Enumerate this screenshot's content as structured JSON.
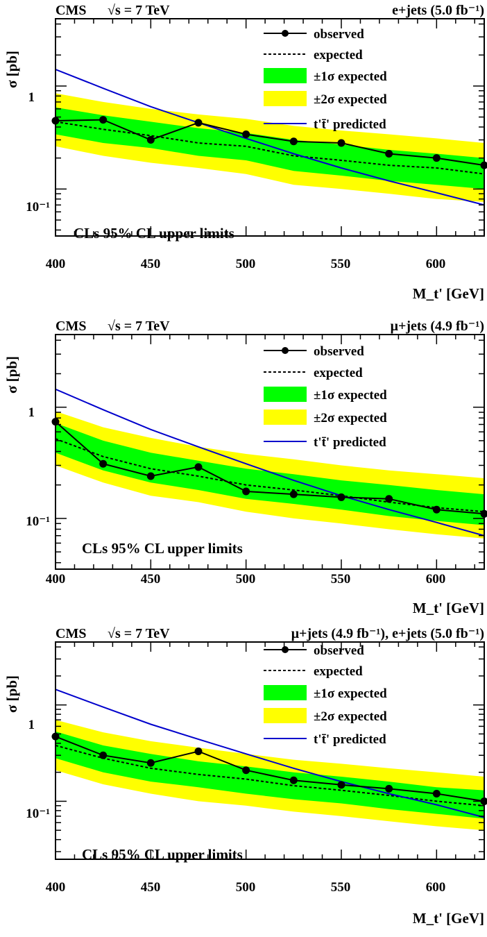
{
  "chart_data": [
    {
      "type": "line",
      "header_left": "CMS",
      "header_energy": "√s = 7 TeV",
      "header_right": "e+jets (5.0 fb⁻¹)",
      "xlabel": "M_t' [GeV]",
      "ylabel": "σ [pb]",
      "annotation": "CLs 95% CL upper limits",
      "x_ticks": [
        "400",
        "450",
        "500",
        "550",
        "600"
      ],
      "y_ticks": [
        "1",
        "10⁻¹"
      ],
      "xlim": [
        400,
        625
      ],
      "ylim": [
        0.035,
        4.5
      ],
      "ylog": true,
      "legend_position": "top-right",
      "legend": [
        "observed",
        "expected",
        "±1σ expected",
        "±2σ expected",
        "t't̄' predicted"
      ],
      "x": [
        400,
        425,
        450,
        475,
        500,
        525,
        550,
        575,
        600,
        625
      ],
      "series": [
        {
          "name": "observed",
          "values": [
            0.46,
            0.47,
            0.3,
            0.44,
            0.34,
            0.29,
            0.28,
            0.22,
            0.2,
            0.17
          ]
        },
        {
          "name": "expected",
          "values": [
            0.45,
            0.38,
            0.33,
            0.28,
            0.26,
            0.21,
            0.19,
            0.17,
            0.16,
            0.14
          ]
        },
        {
          "name": "t't̄' predicted",
          "values": [
            1.45,
            0.95,
            0.63,
            0.44,
            0.31,
            0.22,
            0.16,
            0.12,
            0.092,
            0.07
          ]
        }
      ],
      "band_1sigma": {
        "low": [
          0.34,
          0.28,
          0.25,
          0.21,
          0.19,
          0.15,
          0.135,
          0.12,
          0.11,
          0.1
        ],
        "high": [
          0.62,
          0.52,
          0.45,
          0.39,
          0.35,
          0.3,
          0.27,
          0.24,
          0.22,
          0.2
        ]
      },
      "band_2sigma": {
        "low": [
          0.26,
          0.21,
          0.18,
          0.16,
          0.14,
          0.11,
          0.1,
          0.09,
          0.08,
          0.075
        ],
        "high": [
          0.85,
          0.7,
          0.6,
          0.53,
          0.48,
          0.41,
          0.37,
          0.34,
          0.31,
          0.28
        ]
      }
    },
    {
      "type": "line",
      "header_left": "CMS",
      "header_energy": "√s = 7 TeV",
      "header_right": "μ+jets (4.9 fb⁻¹)",
      "xlabel": "M_t' [GeV]",
      "ylabel": "σ [pb]",
      "annotation": "CLs 95% CL upper limits",
      "x_ticks": [
        "400",
        "450",
        "500",
        "550",
        "600"
      ],
      "y_ticks": [
        "1",
        "10⁻¹"
      ],
      "xlim": [
        400,
        625
      ],
      "ylim": [
        0.035,
        4.5
      ],
      "ylog": true,
      "legend_position": "top-right",
      "legend": [
        "observed",
        "expected",
        "±1σ expected",
        "±2σ expected",
        "t't̄' predicted"
      ],
      "x": [
        400,
        425,
        450,
        475,
        500,
        525,
        550,
        575,
        600,
        625
      ],
      "series": [
        {
          "name": "observed",
          "values": [
            0.74,
            0.31,
            0.24,
            0.29,
            0.175,
            0.165,
            0.155,
            0.15,
            0.12,
            0.11
          ]
        },
        {
          "name": "expected",
          "values": [
            0.52,
            0.36,
            0.28,
            0.24,
            0.2,
            0.18,
            0.16,
            0.14,
            0.125,
            0.115
          ]
        },
        {
          "name": "t't̄' predicted",
          "values": [
            1.45,
            0.95,
            0.63,
            0.44,
            0.31,
            0.22,
            0.16,
            0.12,
            0.092,
            0.07
          ]
        }
      ],
      "band_1sigma": {
        "low": [
          0.39,
          0.27,
          0.21,
          0.18,
          0.15,
          0.135,
          0.12,
          0.105,
          0.095,
          0.087
        ],
        "high": [
          0.72,
          0.5,
          0.39,
          0.33,
          0.28,
          0.25,
          0.22,
          0.2,
          0.18,
          0.165
        ]
      },
      "band_2sigma": {
        "low": [
          0.3,
          0.21,
          0.16,
          0.14,
          0.115,
          0.1,
          0.09,
          0.08,
          0.072,
          0.066
        ],
        "high": [
          0.92,
          0.66,
          0.53,
          0.44,
          0.38,
          0.34,
          0.3,
          0.27,
          0.25,
          0.23
        ]
      }
    },
    {
      "type": "line",
      "header_left": "CMS",
      "header_energy": "√s = 7 TeV",
      "header_right": "μ+jets (4.9 fb⁻¹), e+jets (5.0 fb⁻¹)",
      "xlabel": "M_t' [GeV]",
      "ylabel": "σ [pb]",
      "annotation": "CLs 95% CL upper limits",
      "x_ticks": [
        "400",
        "450",
        "500",
        "550",
        "600"
      ],
      "y_ticks": [
        "1",
        "10⁻¹"
      ],
      "xlim": [
        400,
        625
      ],
      "ylim": [
        0.025,
        4.5
      ],
      "ylog": true,
      "legend_position": "top-right",
      "legend": [
        "observed",
        "expected",
        "±1σ expected",
        "±2σ expected",
        "t't̄' predicted"
      ],
      "x": [
        400,
        425,
        450,
        475,
        500,
        525,
        550,
        575,
        600,
        625
      ],
      "series": [
        {
          "name": "observed",
          "values": [
            0.47,
            0.3,
            0.25,
            0.33,
            0.21,
            0.165,
            0.148,
            0.135,
            0.12,
            0.1
          ]
        },
        {
          "name": "expected",
          "values": [
            0.38,
            0.28,
            0.22,
            0.19,
            0.17,
            0.145,
            0.13,
            0.115,
            0.1,
            0.09
          ]
        },
        {
          "name": "t't̄' predicted",
          "values": [
            1.45,
            0.95,
            0.63,
            0.44,
            0.31,
            0.22,
            0.16,
            0.12,
            0.092,
            0.068
          ]
        }
      ],
      "band_1sigma": {
        "low": [
          0.28,
          0.2,
          0.16,
          0.14,
          0.12,
          0.105,
          0.095,
          0.083,
          0.074,
          0.066
        ],
        "high": [
          0.53,
          0.38,
          0.31,
          0.26,
          0.23,
          0.2,
          0.18,
          0.16,
          0.14,
          0.13
        ]
      },
      "band_2sigma": {
        "low": [
          0.21,
          0.15,
          0.12,
          0.1,
          0.09,
          0.078,
          0.07,
          0.062,
          0.055,
          0.05
        ],
        "high": [
          0.7,
          0.52,
          0.42,
          0.36,
          0.31,
          0.27,
          0.245,
          0.22,
          0.2,
          0.18
        ]
      }
    }
  ]
}
